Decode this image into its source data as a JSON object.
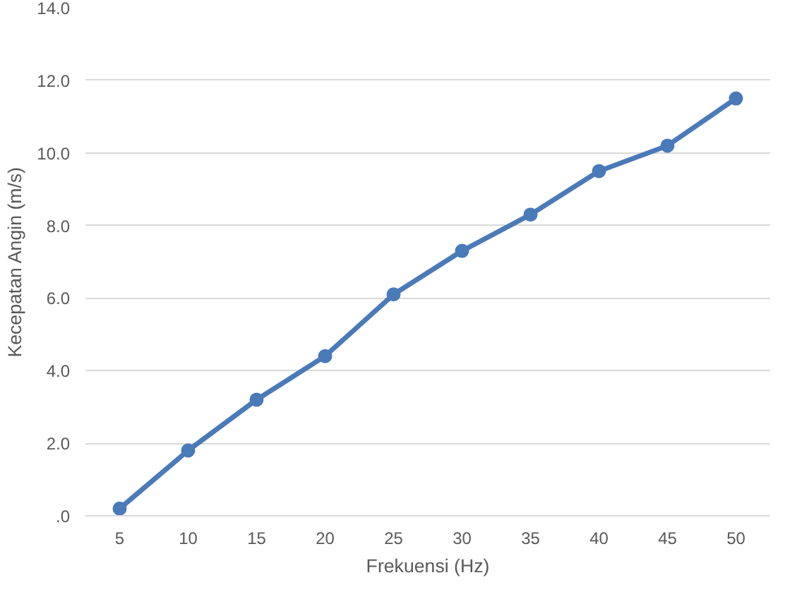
{
  "chart_data": {
    "type": "line",
    "xlabel": "Frekuensi (Hz)",
    "ylabel": "Kecepatan Angin (m/s)",
    "categories": [
      "5",
      "10",
      "15",
      "20",
      "25",
      "30",
      "35",
      "40",
      "45",
      "50"
    ],
    "series": [
      {
        "color": "#4a7ab8",
        "values": [
          0.2,
          1.8,
          3.2,
          4.4,
          6.1,
          7.3,
          8.3,
          9.5,
          10.2,
          11.5
        ]
      }
    ],
    "ylim": [
      0,
      14
    ],
    "yticks": [
      {
        "value": 0,
        "label": ".0"
      },
      {
        "value": 2,
        "label": "2.0"
      },
      {
        "value": 4,
        "label": "4.0"
      },
      {
        "value": 6,
        "label": "6.0"
      },
      {
        "value": 8,
        "label": "8.0"
      },
      {
        "value": 10,
        "label": "10.0"
      },
      {
        "value": 12,
        "label": "12.0"
      },
      {
        "value": 14,
        "label": "14.0"
      }
    ],
    "grid": "y",
    "marker": "circle",
    "line_style": "solid"
  }
}
